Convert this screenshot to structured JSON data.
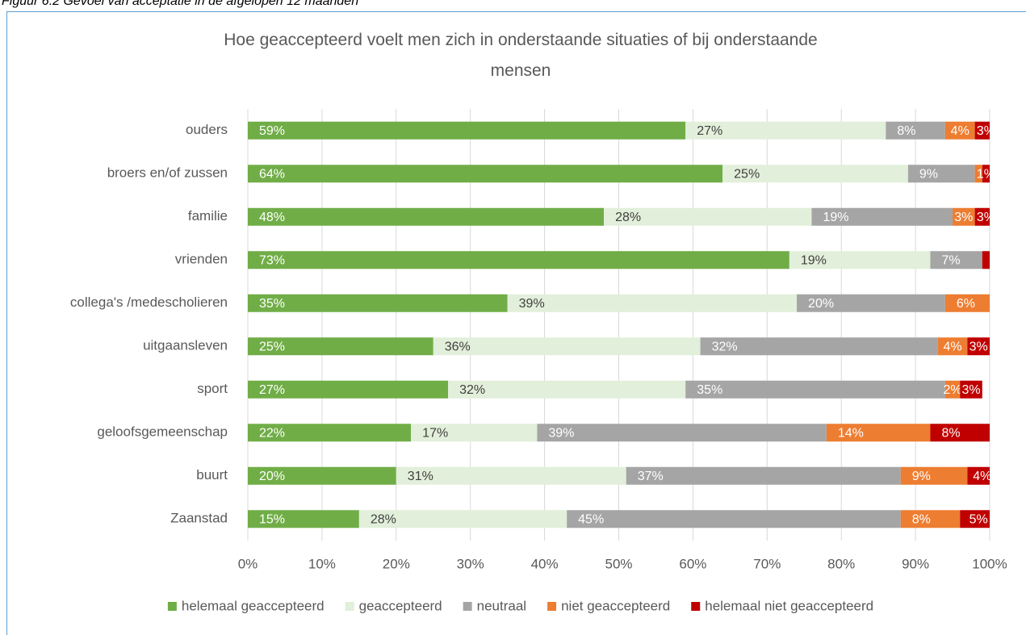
{
  "caption": "Figuur 6.2 Gevoel van acceptatie in de afgelopen 12 maanden",
  "chart_data": {
    "type": "stacked-bar-horizontal",
    "title": "Hoe geaccepteerd voelt men zich in onderstaande situaties of bij onderstaande mensen",
    "categories": [
      "ouders",
      "broers en/of zussen",
      "familie",
      "vrienden",
      "collega's /medescholieren",
      "uitgaansleven",
      "sport",
      "geloofsgemeenschap",
      "buurt",
      "Zaanstad"
    ],
    "series": [
      {
        "name": "helemaal geaccepteerd",
        "color": "#70ad47",
        "label_color": "#ffffff",
        "values": [
          59,
          64,
          48,
          73,
          35,
          25,
          27,
          22,
          20,
          15
        ],
        "value_labels": [
          "59%",
          "64%",
          "48%",
          "73%",
          "35%",
          "25%",
          "27%",
          "22%",
          "20%",
          "15%"
        ]
      },
      {
        "name": "geaccepteerd",
        "color": "#e2efda",
        "label_color": "#404040",
        "values": [
          27,
          25,
          28,
          19,
          39,
          36,
          32,
          17,
          31,
          28
        ],
        "value_labels": [
          "27%",
          "25%",
          "28%",
          "19%",
          "39%",
          "36%",
          "32%",
          "17%",
          "31%",
          "28%"
        ]
      },
      {
        "name": "neutraal",
        "color": "#a5a5a5",
        "label_color": "#ffffff",
        "values": [
          8,
          9,
          19,
          7,
          20,
          32,
          35,
          39,
          37,
          45
        ],
        "value_labels": [
          "8%",
          "9%",
          "19%",
          "7%",
          "20%",
          "32%",
          "35%",
          "39%",
          "37%",
          "45%"
        ]
      },
      {
        "name": "niet geaccepteerd",
        "color": "#ed7d31",
        "label_color": "#ffffff",
        "values": [
          4,
          1,
          3,
          0,
          6,
          4,
          2,
          14,
          9,
          8
        ],
        "value_labels": [
          "4%",
          null,
          "3%",
          null,
          "6%",
          "4%",
          "2%",
          "14%",
          "9%",
          "8%"
        ]
      },
      {
        "name": "helemaal niet geaccepteerd",
        "color": "#c00000",
        "label_color": "#ffffff",
        "values": [
          3,
          1,
          3,
          1,
          1,
          3,
          3,
          8,
          4,
          5
        ],
        "value_labels": [
          "3%",
          "1%",
          "3%",
          null,
          null,
          "3%",
          "3%",
          "8%",
          "4%",
          "5%"
        ]
      }
    ],
    "xlim": [
      0,
      100
    ],
    "xticks": [
      {
        "value": 0,
        "label": "0%"
      },
      {
        "value": 10,
        "label": "10%"
      },
      {
        "value": 20,
        "label": "20%"
      },
      {
        "value": 30,
        "label": "30%"
      },
      {
        "value": 40,
        "label": "40%"
      },
      {
        "value": 50,
        "label": "50%"
      },
      {
        "value": 60,
        "label": "60%"
      },
      {
        "value": 70,
        "label": "70%"
      },
      {
        "value": 80,
        "label": "80%"
      },
      {
        "value": 90,
        "label": "90%"
      },
      {
        "value": 100,
        "label": "100%"
      }
    ],
    "grid": true,
    "legend": "bottom"
  }
}
